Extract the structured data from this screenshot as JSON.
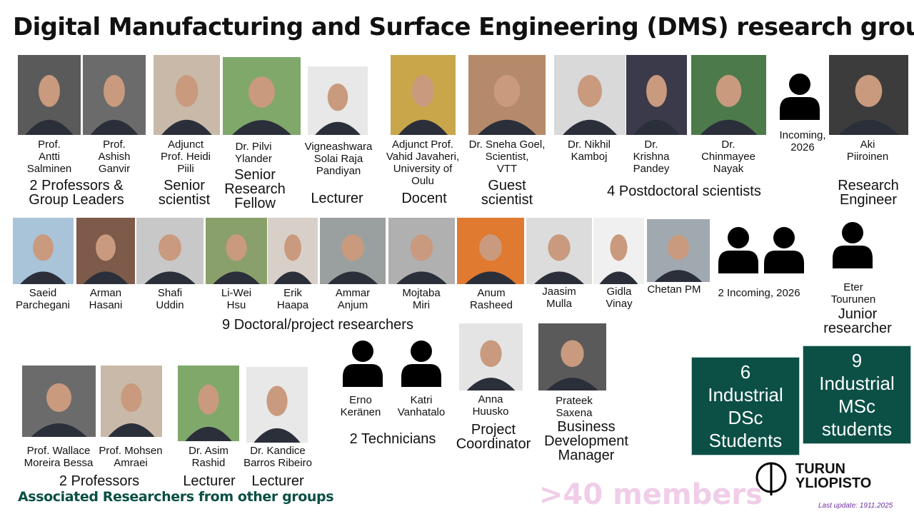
{
  "title": "Digital Manufacturing and Surface Engineering (DMS) research group",
  "members": [
    "Prof.\nAntti\nSalminen",
    "Prof.\nAshish\nGanvir",
    "Adjunct\nProf. Heidi\nPiili",
    "Dr. Pilvi\nYlander",
    "Vigneashwara\nSolai Raja\nPandiyan",
    "Adjunct Prof.\nVahid Javaheri,\nUniversity of\nOulu",
    "Dr. Sneha Goel,\nScientist,\nVTT",
    "Dr. Nikhil\nKamboj",
    "Dr.\nKrishna\nPandey",
    "Dr.\nChinmayee\nNayak",
    "Incoming,\n2026",
    "Aki\nPiiroinen",
    "Saeid\nParchegani",
    "Arman\nHasani",
    "Shafi\nUddin",
    "Li-Wei\nHsu",
    "Erik\nHaapa",
    "Ammar\nAnjum",
    "Mojtaba\nMiri",
    "Anum\nRasheed",
    "Jaasim\nMulla",
    "Gidla\nVinay",
    "Chetan PM",
    "2 Incoming, 2026",
    "Eter\nTourunen",
    "Erno\nKeränen",
    "Katri\nVanhatalo",
    "Anna\nHuusko",
    "Prateek\nSaxena"
  ],
  "roles": [
    "2 Professors &\nGroup Leaders",
    "Senior\nscientist",
    "Senior\nResearch\nFellow",
    "Lecturer",
    "Docent",
    "Guest\nscientist",
    "4 Postdoctoral scientists",
    "Research\nEngineer",
    "9 Doctoral/project researchers",
    "Junior\nresearcher",
    "2 Technicians",
    "Project\nCoordinator",
    "Business\nDevelopment\nManager"
  ],
  "associated": {
    "heading": "Associated Researchers from other groups",
    "members": [
      "Prof. Wallace\nMoreira Bessa",
      "Prof. Mohsen\nAmraei",
      "Dr. Asim\nRashid",
      "Dr. Kandice\nBarros Ribeiro"
    ],
    "roles": [
      "2 Professors",
      "Lecturer",
      "Lecturer"
    ]
  },
  "boxes": [
    "6\nIndustrial\nDSc\nStudents",
    "9\nIndustrial\nMSc\nstudents"
  ],
  "summary": ">40 members",
  "logo": "TURUN\nYLIOPISTO",
  "footer": "Last update: 1911.2025"
}
